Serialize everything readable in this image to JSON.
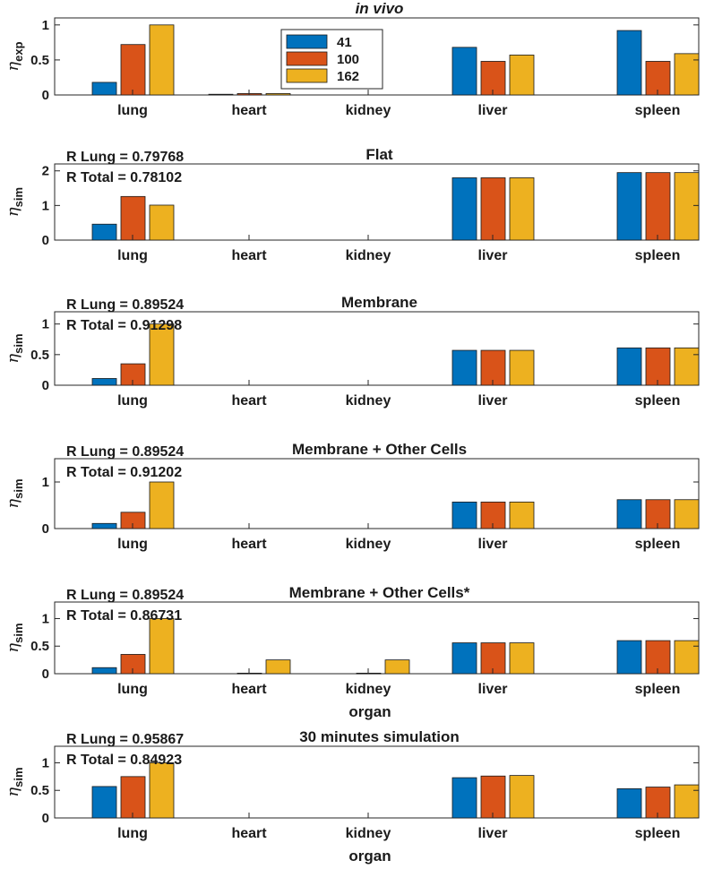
{
  "colors": {
    "series_41": "#0072BD",
    "series_100": "#D95319",
    "series_162": "#EDB120",
    "axis": "#262626",
    "bar_edge": "#1a1a1a"
  },
  "legend": [
    "41",
    "100",
    "162"
  ],
  "chart_data": [
    {
      "type": "bar",
      "title": "in vivo",
      "title_italic": true,
      "categories": [
        "lung",
        "heart",
        "kidney",
        "liver",
        "spleen"
      ],
      "series": [
        {
          "name": "41",
          "values": [
            0.18,
            0.01,
            0,
            0.68,
            0.92
          ]
        },
        {
          "name": "100",
          "values": [
            0.72,
            0.02,
            0,
            0.48,
            0.48
          ]
        },
        {
          "name": "162",
          "values": [
            1.0,
            0.02,
            0,
            0.57,
            0.59
          ]
        }
      ],
      "ylabel": "η",
      "ylabel_sub": "exp",
      "ylim": [
        0,
        1.1
      ],
      "yticks": [
        0,
        0.5,
        1
      ],
      "ytick_labels": [
        "0",
        "0.5",
        "1"
      ],
      "xlabel": "",
      "show_legend": true,
      "r_lung": "",
      "r_total": ""
    },
    {
      "type": "bar",
      "title": "Flat",
      "categories": [
        "lung",
        "heart",
        "kidney",
        "liver",
        "spleen"
      ],
      "series": [
        {
          "name": "41",
          "values": [
            0.46,
            0,
            0,
            1.8,
            1.95
          ]
        },
        {
          "name": "100",
          "values": [
            1.26,
            0,
            0,
            1.8,
            1.95
          ]
        },
        {
          "name": "162",
          "values": [
            1.01,
            0,
            0,
            1.8,
            1.95
          ]
        }
      ],
      "ylabel": "η",
      "ylabel_sub": "sim",
      "ylim": [
        0,
        2.2
      ],
      "yticks": [
        0,
        1,
        2
      ],
      "ytick_labels": [
        "0",
        "1",
        "2"
      ],
      "xlabel": "",
      "r_lung": "R Lung = 0.79768",
      "r_total": "R Total = 0.78102"
    },
    {
      "type": "bar",
      "title": "Membrane",
      "categories": [
        "lung",
        "heart",
        "kidney",
        "liver",
        "spleen"
      ],
      "series": [
        {
          "name": "41",
          "values": [
            0.11,
            0,
            0,
            0.57,
            0.61
          ]
        },
        {
          "name": "100",
          "values": [
            0.35,
            0,
            0,
            0.57,
            0.61
          ]
        },
        {
          "name": "162",
          "values": [
            1.0,
            0,
            0,
            0.57,
            0.61
          ]
        }
      ],
      "ylabel": "η",
      "ylabel_sub": "sim",
      "ylim": [
        0,
        1.2
      ],
      "yticks": [
        0,
        0.5,
        1
      ],
      "ytick_labels": [
        "0",
        "0.5",
        "1"
      ],
      "xlabel": "",
      "r_lung": "R Lung = 0.89524",
      "r_total": "R Total = 0.91298"
    },
    {
      "type": "bar",
      "title": "Membrane + Other Cells",
      "categories": [
        "lung",
        "heart",
        "kidney",
        "liver",
        "spleen"
      ],
      "series": [
        {
          "name": "41",
          "values": [
            0.11,
            0,
            0,
            0.57,
            0.62
          ]
        },
        {
          "name": "100",
          "values": [
            0.35,
            0,
            0,
            0.57,
            0.62
          ]
        },
        {
          "name": "162",
          "values": [
            1.0,
            0,
            0,
            0.57,
            0.62
          ]
        }
      ],
      "ylabel": "η",
      "ylabel_sub": "sim",
      "ylim": [
        0,
        1.5
      ],
      "yticks": [
        0,
        1
      ],
      "ytick_labels": [
        "0",
        "1"
      ],
      "xlabel": "",
      "r_lung": "R Lung = 0.89524",
      "r_total": "R Total = 0.91202"
    },
    {
      "type": "bar",
      "title": "Membrane + Other Cells*",
      "categories": [
        "lung",
        "heart",
        "kidney",
        "liver",
        "spleen"
      ],
      "series": [
        {
          "name": "41",
          "values": [
            0.11,
            0,
            0,
            0.56,
            0.6
          ]
        },
        {
          "name": "100",
          "values": [
            0.35,
            0.01,
            0.01,
            0.56,
            0.6
          ]
        },
        {
          "name": "162",
          "values": [
            1.0,
            0.25,
            0.25,
            0.56,
            0.6
          ]
        }
      ],
      "ylabel": "η",
      "ylabel_sub": "sim",
      "ylim": [
        0,
        1.3
      ],
      "yticks": [
        0,
        0.5,
        1
      ],
      "ytick_labels": [
        "0",
        "0.5",
        "1"
      ],
      "xlabel": "organ",
      "r_lung": "R Lung = 0.89524",
      "r_total": "R Total = 0.86731"
    },
    {
      "type": "bar",
      "title": "30 minutes simulation",
      "categories": [
        "lung",
        "heart",
        "kidney",
        "liver",
        "spleen"
      ],
      "series": [
        {
          "name": "41",
          "values": [
            0.57,
            0,
            0,
            0.73,
            0.53
          ]
        },
        {
          "name": "100",
          "values": [
            0.75,
            0,
            0,
            0.76,
            0.56
          ]
        },
        {
          "name": "162",
          "values": [
            1.0,
            0,
            0,
            0.77,
            0.6
          ]
        }
      ],
      "ylabel": "η",
      "ylabel_sub": "sim",
      "ylim": [
        0,
        1.3
      ],
      "yticks": [
        0,
        0.5,
        1
      ],
      "ytick_labels": [
        "0",
        "0.5",
        "1"
      ],
      "xlabel": "organ",
      "r_lung": "R Lung = 0.95867",
      "r_total": "R Total = 0.84923"
    }
  ]
}
